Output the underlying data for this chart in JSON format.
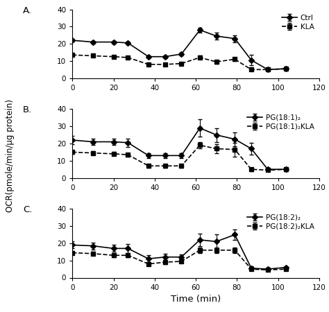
{
  "x": [
    0,
    10,
    20,
    27,
    37,
    45,
    53,
    62,
    70,
    79,
    87,
    95,
    104
  ],
  "panel_A": {
    "solid_y": [
      22,
      21,
      21,
      20.5,
      12.5,
      12.5,
      14,
      28,
      24.5,
      23,
      10.5,
      5,
      5.5
    ],
    "solid_e": [
      0.8,
      0.8,
      0.8,
      0.8,
      0.8,
      0.8,
      0.8,
      1.5,
      2,
      2,
      3,
      0.8,
      0.8
    ],
    "dash_y": [
      13.5,
      13,
      12.5,
      12,
      8,
      8,
      8.5,
      12,
      9.5,
      11,
      5,
      5,
      5.5
    ],
    "dash_e": [
      0.5,
      0.5,
      0.5,
      0.5,
      0.5,
      0.5,
      0.5,
      1,
      1,
      1,
      0.5,
      0.5,
      0.5
    ],
    "label1": "Ctrl",
    "label2": "KLA"
  },
  "panel_B": {
    "solid_y": [
      22,
      21,
      21,
      20.5,
      13,
      13,
      13,
      29,
      25,
      22.5,
      17,
      5,
      5
    ],
    "solid_e": [
      2.5,
      2,
      2,
      2.5,
      1.5,
      1.5,
      1.5,
      5,
      4,
      4,
      3.5,
      1,
      1
    ],
    "dash_y": [
      15,
      14.5,
      14,
      13.5,
      7,
      7,
      7,
      19,
      17,
      16.5,
      5,
      4.5,
      5
    ],
    "dash_e": [
      1,
      1,
      1,
      1,
      1,
      1,
      1,
      2,
      2.5,
      4,
      1,
      0.5,
      0.5
    ],
    "label1": "PG(18:1)₂",
    "label2": "PG(18:1)₂KLA"
  },
  "panel_C": {
    "solid_y": [
      19,
      18.5,
      17,
      17,
      11,
      12,
      12,
      22,
      21,
      25,
      5.5,
      5,
      6
    ],
    "solid_e": [
      2,
      2,
      2,
      2.5,
      2,
      2,
      1.5,
      3.5,
      4,
      3,
      1,
      0.5,
      0.5
    ],
    "dash_y": [
      14.5,
      14,
      13,
      13,
      8,
      9,
      9.5,
      16,
      16,
      16,
      5,
      4.5,
      5
    ],
    "dash_e": [
      1,
      1,
      1,
      1,
      1,
      1,
      1,
      1.5,
      1.5,
      1.5,
      0.5,
      0.5,
      0.5
    ],
    "label1": "PG(18:2)₂",
    "label2": "PG(18:2)₂KLA"
  },
  "ylabel": "OCR(pmole/min/μg protein)",
  "xlabel": "Time (min)",
  "xlim": [
    0,
    120
  ],
  "ylim": [
    0,
    40
  ],
  "xticks": [
    0,
    20,
    40,
    60,
    80,
    100,
    120
  ],
  "yticks": [
    0,
    10,
    20,
    30,
    40
  ],
  "color_solid": "#000000",
  "color_dash": "#000000",
  "marker_solid": "D",
  "marker_dash": "s",
  "linewidth": 1.2,
  "markersize": 4,
  "capsize": 2,
  "elinewidth": 0.8,
  "panel_labels": [
    "A.",
    "B.",
    "C."
  ],
  "legend_fontsize": 7.5,
  "tick_fontsize": 7.5,
  "label_fontsize": 8.5
}
